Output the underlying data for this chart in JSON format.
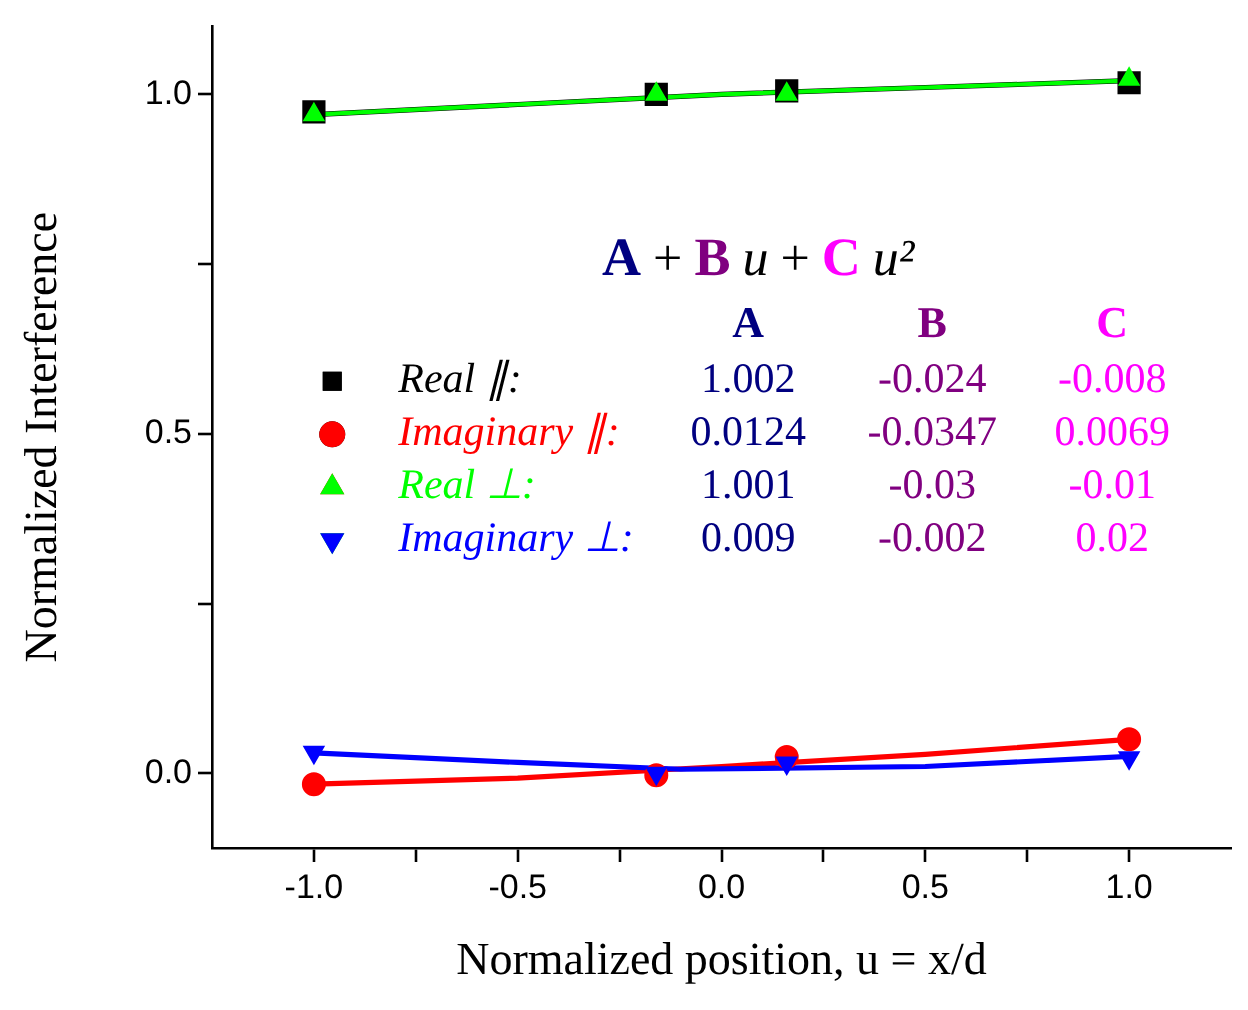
{
  "chart_data": {
    "type": "scatter",
    "xlabel": "Normalized position, u = x/d",
    "ylabel": "Normalized Interference",
    "xlim": [
      -1.25,
      1.25
    ],
    "xticks": [
      {
        "value": -1,
        "label": "-1.0"
      },
      {
        "value": -0.75,
        "label": null
      },
      {
        "value": -0.5,
        "label": "-0.5"
      },
      {
        "value": -0.25,
        "label": null
      },
      {
        "value": 0,
        "label": "0.0"
      },
      {
        "value": 0.25,
        "label": null
      },
      {
        "value": 0.5,
        "label": "0.5"
      },
      {
        "value": 0.75,
        "label": null
      },
      {
        "value": 1,
        "label": "1.0"
      }
    ],
    "ylim": [
      -0.11,
      1.1
    ],
    "yticks": [
      {
        "value": 0,
        "label": "0.0"
      },
      {
        "value": 0.25,
        "label": null
      },
      {
        "value": 0.5,
        "label": "0.5"
      },
      {
        "value": 0.75,
        "label": null
      },
      {
        "value": 1,
        "label": "1.0"
      }
    ],
    "grid": false,
    "legend": "left",
    "series": [
      {
        "type": "line",
        "color": "#000000",
        "marker": "none",
        "line_style": "solid",
        "x": [
          -1,
          -0.5,
          0,
          0.5,
          1
        ],
        "values": [
          0.97,
          0.985,
          1.0,
          1.01,
          1.02
        ]
      },
      {
        "type": "line",
        "color": "#ff0000",
        "marker": "none",
        "line_style": "solid",
        "x": [
          -1,
          -0.5,
          0,
          0.5,
          1
        ],
        "values": [
          -0.016,
          -0.007,
          0.01,
          0.028,
          0.05
        ]
      },
      {
        "type": "line",
        "color": "#00ff00",
        "marker": "none",
        "line_style": "solid",
        "x": [
          -1,
          -0.5,
          0,
          0.5,
          1
        ],
        "values": [
          0.97,
          0.985,
          1.0,
          1.01,
          1.02
        ]
      },
      {
        "type": "line",
        "color": "#0000ff",
        "marker": "none",
        "line_style": "solid",
        "x": [
          -1,
          -0.5,
          -0.1,
          0.5,
          1
        ],
        "values": [
          0.03,
          0.016,
          0.006,
          0.01,
          0.025
        ]
      },
      {
        "type": "scatter",
        "name": "Real ∥:",
        "color": "#000000",
        "marker": "square",
        "x": [
          -1,
          -0.16,
          0.16,
          1
        ],
        "values": [
          0.974,
          1.0,
          1.005,
          1.017
        ]
      },
      {
        "type": "scatter",
        "name": "Imaginary ∥:",
        "color": "#ff0000",
        "marker": "circle",
        "x": [
          -1,
          -0.16,
          0.16,
          1
        ],
        "values": [
          -0.016,
          -0.003,
          0.024,
          0.05
        ]
      },
      {
        "type": "scatter",
        "name": "Real ⊥:",
        "color": "#00ff00",
        "marker": "triangle",
        "x": [
          -1,
          -0.16,
          0.16,
          1
        ],
        "values": [
          0.97,
          1.0,
          1.0,
          1.022
        ]
      },
      {
        "type": "scatter",
        "name": "Imaginary ⊥:",
        "color": "#0000ff",
        "marker": "triangle-down",
        "x": [
          -1,
          -0.16,
          0.16,
          1
        ],
        "values": [
          0.031,
          0.0,
          0.015,
          0.023
        ]
      }
    ],
    "annotations": [
      "A + B u + C u²",
      "A",
      "B",
      "C",
      "1.002",
      "-0.024",
      "-0.008",
      "0.0124",
      "-0.0347",
      "0.0069",
      "1.001",
      "-0.03",
      "-0.01",
      "0.009",
      "-0.002",
      "0.02"
    ]
  }
}
